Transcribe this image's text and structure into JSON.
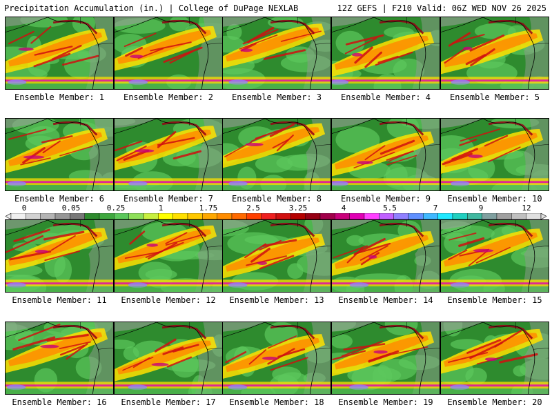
{
  "header": {
    "left": "Precipitation Accumulation (in.) | College of DuPage NEXLAB",
    "right": "12Z GEFS | F210 Valid: 06Z WED NOV 26 2025"
  },
  "members": [
    "Ensemble Member: 1",
    "Ensemble Member: 2",
    "Ensemble Member: 3",
    "Ensemble Member: 4",
    "Ensemble Member: 5",
    "Ensemble Member: 6",
    "Ensemble Member: 7",
    "Ensemble Member: 8",
    "Ensemble Member: 9",
    "Ensemble Member: 10",
    "Ensemble Member: 11",
    "Ensemble Member: 12",
    "Ensemble Member: 13",
    "Ensemble Member: 14",
    "Ensemble Member: 15",
    "Ensemble Member: 16",
    "Ensemble Member: 17",
    "Ensemble Member: 18",
    "Ensemble Member: 19",
    "Ensemble Member: 20"
  ],
  "colorbar": {
    "labels": [
      "0",
      "0.05",
      "0.25",
      "1",
      "1.75",
      "2.5",
      "3.25",
      "4",
      "5.5",
      "7",
      "9",
      "12"
    ],
    "colors": [
      "#f0f0f0",
      "#d2d2d2",
      "#b4b4b4",
      "#969696",
      "#787878",
      "#2e8b2e",
      "#3fa83f",
      "#5cc85c",
      "#8fe05a",
      "#c8f040",
      "#ffff00",
      "#ffe000",
      "#ffc800",
      "#ffa800",
      "#ff8c00",
      "#ff6a00",
      "#ff4000",
      "#ee2020",
      "#d01010",
      "#b40000",
      "#960014",
      "#a0004a",
      "#c8007a",
      "#e000b4",
      "#ff40ff",
      "#c060ff",
      "#9080ff",
      "#6090ff",
      "#40b8ff",
      "#20e8ff",
      "#20d0c0",
      "#40b8a0",
      "#80a0a0",
      "#a0a0a0",
      "#c0c0c0",
      "#e0e0e0"
    ]
  }
}
